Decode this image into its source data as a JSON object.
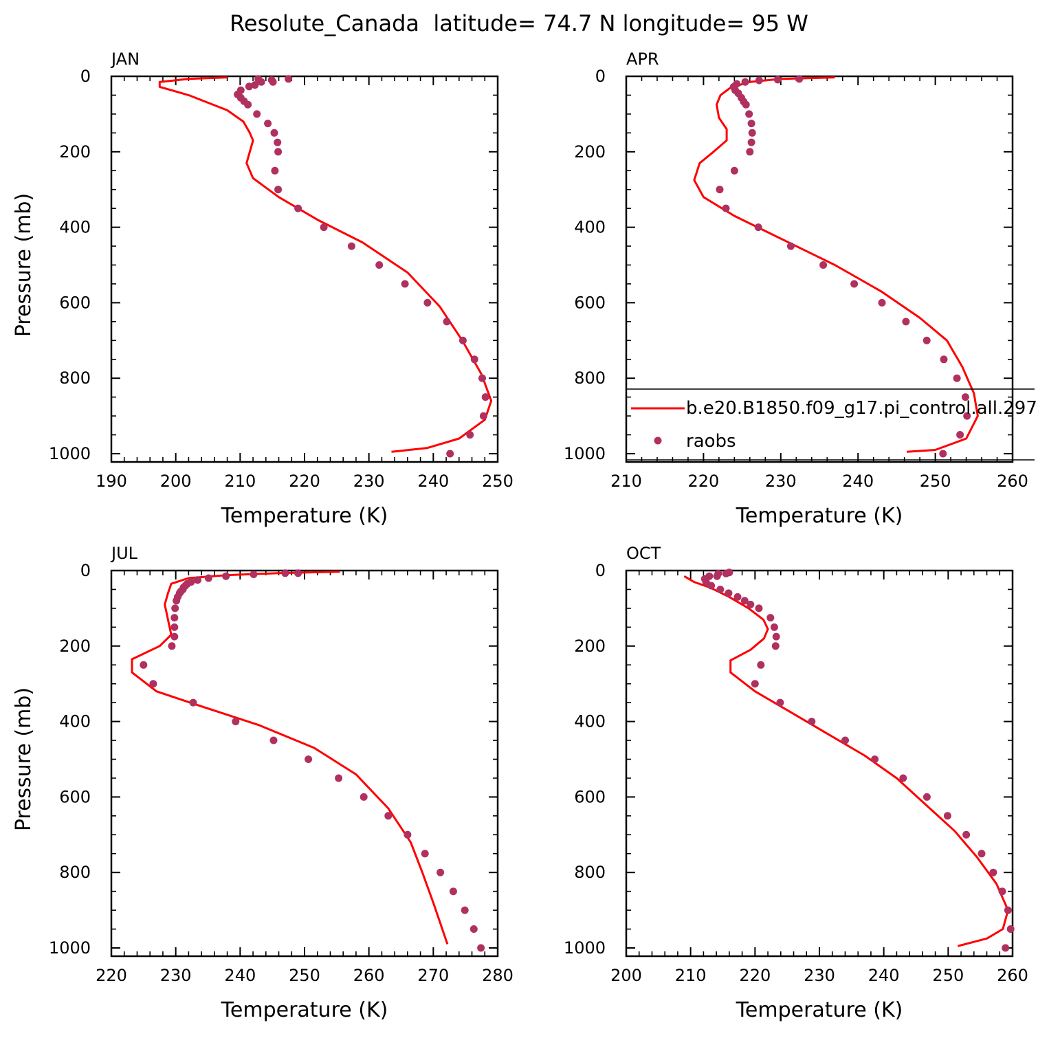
{
  "title": "Resolute_Canada  latitude= 74.7 N longitude= 95 W",
  "colors": {
    "model": "#ff0000",
    "obs": "#b03060",
    "axis": "#000000"
  },
  "legend": {
    "panel": 1,
    "model_label": "b.e20.B1850.f09_g17.pi_control.all.297",
    "obs_label": "raobs"
  },
  "chart_data": [
    {
      "type": "line",
      "panel_label": "JAN",
      "xlabel": "Temperature (K)",
      "ylabel": "Pressure (mb)",
      "xlim": [
        190,
        250
      ],
      "ylim": [
        1000,
        0
      ],
      "xticks": [
        190,
        200,
        210,
        220,
        230,
        240,
        250
      ],
      "yticks": [
        0,
        200,
        400,
        600,
        800,
        1000
      ],
      "series": [
        {
          "name": "b.e20.B1850.f09_g17.pi_control.all.297",
          "style": "line",
          "points": [
            [
              208,
              3
            ],
            [
              202,
              7
            ],
            [
              197.5,
              15
            ],
            [
              197.5,
              28
            ],
            [
              202,
              50
            ],
            [
              208,
              90
            ],
            [
              210.5,
              120
            ],
            [
              211.5,
              150
            ],
            [
              212,
              170
            ],
            [
              211.5,
              200
            ],
            [
              211,
              230
            ],
            [
              212,
              270
            ],
            [
              216,
              320
            ],
            [
              222,
              380
            ],
            [
              229,
              440
            ],
            [
              236,
              520
            ],
            [
              241,
              610
            ],
            [
              244.5,
              700
            ],
            [
              247.5,
              790
            ],
            [
              249,
              860
            ],
            [
              248,
              910
            ],
            [
              244,
              960
            ],
            [
              239,
              985
            ],
            [
              233.5,
              995
            ]
          ]
        },
        {
          "name": "raobs",
          "style": "scatter",
          "points": [
            [
              217.5,
              7
            ],
            [
              212.8,
              7
            ],
            [
              214.9,
              10
            ],
            [
              213.3,
              15
            ],
            [
              215.1,
              15
            ],
            [
              212.3,
              23
            ],
            [
              211.4,
              27
            ],
            [
              210.1,
              37
            ],
            [
              209.6,
              48
            ],
            [
              210.1,
              57
            ],
            [
              210.6,
              66
            ],
            [
              211.2,
              75
            ],
            [
              212.6,
              100
            ],
            [
              214.3,
              125
            ],
            [
              215.3,
              150
            ],
            [
              215.8,
              175
            ],
            [
              215.9,
              200
            ],
            [
              215.4,
              250
            ],
            [
              215.9,
              300
            ],
            [
              219,
              350
            ],
            [
              223,
              400
            ],
            [
              227.3,
              450
            ],
            [
              231.6,
              500
            ],
            [
              235.6,
              550
            ],
            [
              239.1,
              600
            ],
            [
              242.1,
              650
            ],
            [
              244.6,
              700
            ],
            [
              246.4,
              750
            ],
            [
              247.6,
              800
            ],
            [
              248.1,
              850
            ],
            [
              247.8,
              900
            ],
            [
              245.7,
              950
            ],
            [
              242.6,
              1000
            ]
          ]
        }
      ]
    },
    {
      "type": "line",
      "panel_label": "APR",
      "xlabel": "Temperature (K)",
      "ylabel": "",
      "xlim": [
        210,
        260
      ],
      "ylim": [
        1000,
        0
      ],
      "xticks": [
        210,
        220,
        230,
        240,
        250,
        260
      ],
      "yticks": [
        0,
        200,
        400,
        600,
        800,
        1000
      ],
      "series": [
        {
          "name": "b.e20.B1850.f09_g17.pi_control.all.297",
          "style": "line",
          "points": [
            [
              237,
              3
            ],
            [
              230,
              7
            ],
            [
              226,
              15
            ],
            [
              223.5,
              30
            ],
            [
              222.2,
              50
            ],
            [
              221.7,
              75
            ],
            [
              222,
              110
            ],
            [
              223,
              140
            ],
            [
              223,
              170
            ],
            [
              221.3,
              200
            ],
            [
              219.5,
              230
            ],
            [
              218.8,
              275
            ],
            [
              220,
              320
            ],
            [
              224,
              370
            ],
            [
              230,
              430
            ],
            [
              237,
              500
            ],
            [
              243,
              570
            ],
            [
              248,
              640
            ],
            [
              251.5,
              700
            ],
            [
              253.5,
              770
            ],
            [
              255,
              840
            ],
            [
              255.5,
              900
            ],
            [
              254,
              960
            ],
            [
              250,
              990
            ],
            [
              246.3,
              995
            ]
          ]
        },
        {
          "name": "raobs",
          "style": "scatter",
          "points": [
            [
              232.4,
              7
            ],
            [
              229.6,
              9
            ],
            [
              227.2,
              11
            ],
            [
              225.4,
              15
            ],
            [
              224.3,
              20
            ],
            [
              223.9,
              28
            ],
            [
              224.1,
              37
            ],
            [
              224.5,
              45
            ],
            [
              224.9,
              57
            ],
            [
              225.2,
              67
            ],
            [
              225.5,
              75
            ],
            [
              225.9,
              100
            ],
            [
              226.2,
              125
            ],
            [
              226.3,
              150
            ],
            [
              226.2,
              175
            ],
            [
              226,
              200
            ],
            [
              224,
              250
            ],
            [
              222.1,
              300
            ],
            [
              222.9,
              350
            ],
            [
              227.1,
              400
            ],
            [
              231.3,
              450
            ],
            [
              235.5,
              500
            ],
            [
              239.5,
              550
            ],
            [
              243.1,
              600
            ],
            [
              246.2,
              650
            ],
            [
              248.9,
              700
            ],
            [
              251.1,
              750
            ],
            [
              252.8,
              800
            ],
            [
              253.9,
              850
            ],
            [
              254.1,
              900
            ],
            [
              253.2,
              950
            ],
            [
              251,
              1000
            ]
          ]
        }
      ]
    },
    {
      "type": "line",
      "panel_label": "JUL",
      "xlabel": "Temperature (K)",
      "ylabel": "Pressure (mb)",
      "xlim": [
        220,
        280
      ],
      "ylim": [
        1000,
        0
      ],
      "xticks": [
        220,
        230,
        240,
        250,
        260,
        270,
        280
      ],
      "yticks": [
        0,
        200,
        400,
        600,
        800,
        1000
      ],
      "series": [
        {
          "name": "b.e20.B1850.f09_g17.pi_control.all.297",
          "style": "line",
          "points": [
            [
              255.5,
              3
            ],
            [
              246,
              7
            ],
            [
              238,
              12
            ],
            [
              232,
              20
            ],
            [
              229.3,
              35
            ],
            [
              228.8,
              60
            ],
            [
              228.3,
              90
            ],
            [
              228.8,
              130
            ],
            [
              229.3,
              170
            ],
            [
              227.5,
              200
            ],
            [
              223.2,
              235
            ],
            [
              223.2,
              270
            ],
            [
              227,
              320
            ],
            [
              234,
              360
            ],
            [
              243,
              410
            ],
            [
              251.5,
              470
            ],
            [
              258,
              540
            ],
            [
              263,
              630
            ],
            [
              266.5,
              720
            ],
            [
              268.3,
              800
            ],
            [
              270,
              880
            ],
            [
              271,
              930
            ],
            [
              272.2,
              990
            ]
          ]
        },
        {
          "name": "raobs",
          "style": "scatter",
          "points": [
            [
              249,
              7
            ],
            [
              247,
              7
            ],
            [
              242.1,
              10
            ],
            [
              237.8,
              15
            ],
            [
              235.1,
              20
            ],
            [
              233.4,
              25
            ],
            [
              232.4,
              30
            ],
            [
              231.8,
              35
            ],
            [
              231.5,
              40
            ],
            [
              231.2,
              45
            ],
            [
              231.1,
              50
            ],
            [
              230.8,
              55
            ],
            [
              230.6,
              60
            ],
            [
              230.3,
              70
            ],
            [
              230.1,
              80
            ],
            [
              229.9,
              100
            ],
            [
              229.8,
              125
            ],
            [
              229.8,
              150
            ],
            [
              229.8,
              175
            ],
            [
              229.4,
              200
            ],
            [
              225,
              250
            ],
            [
              226.5,
              300
            ],
            [
              232.7,
              350
            ],
            [
              239.3,
              400
            ],
            [
              245.2,
              450
            ],
            [
              250.6,
              500
            ],
            [
              255.3,
              550
            ],
            [
              259.2,
              600
            ],
            [
              263,
              650
            ],
            [
              266,
              700
            ],
            [
              268.7,
              750
            ],
            [
              271.1,
              800
            ],
            [
              273.1,
              850
            ],
            [
              274.9,
              900
            ],
            [
              276.3,
              950
            ],
            [
              277.4,
              1000
            ]
          ]
        }
      ]
    },
    {
      "type": "line",
      "panel_label": "OCT",
      "xlabel": "Temperature (K)",
      "ylabel": "",
      "xlim": [
        200,
        260
      ],
      "ylim": [
        1000,
        0
      ],
      "xticks": [
        200,
        210,
        220,
        230,
        240,
        250,
        260
      ],
      "yticks": [
        0,
        200,
        400,
        600,
        800,
        1000
      ],
      "series": [
        {
          "name": "b.e20.B1850.f09_g17.pi_control.all.297",
          "style": "line",
          "points": [
            [
              209,
              15
            ],
            [
              210.5,
              30
            ],
            [
              213,
              45
            ],
            [
              216,
              70
            ],
            [
              219,
              100
            ],
            [
              221.3,
              130
            ],
            [
              222,
              155
            ],
            [
              221.4,
              180
            ],
            [
              219.3,
              210
            ],
            [
              216.2,
              238
            ],
            [
              216.2,
              270
            ],
            [
              220,
              320
            ],
            [
              225,
              370
            ],
            [
              231,
              430
            ],
            [
              237,
              490
            ],
            [
              242,
              550
            ],
            [
              246.5,
              620
            ],
            [
              251,
              690
            ],
            [
              254.5,
              760
            ],
            [
              257.5,
              830
            ],
            [
              259.3,
              900
            ],
            [
              258.5,
              950
            ],
            [
              256,
              975
            ],
            [
              251.5,
              995
            ]
          ]
        },
        {
          "name": "raobs",
          "style": "scatter",
          "points": [
            [
              216,
              5
            ],
            [
              215.5,
              8
            ],
            [
              214.3,
              8
            ],
            [
              214.1,
              15
            ],
            [
              212.9,
              15
            ],
            [
              212.2,
              22
            ],
            [
              212.4,
              30
            ],
            [
              213.2,
              40
            ],
            [
              214.6,
              50
            ],
            [
              215.9,
              60
            ],
            [
              217.3,
              70
            ],
            [
              218.4,
              80
            ],
            [
              219.3,
              90
            ],
            [
              220.6,
              100
            ],
            [
              222.4,
              125
            ],
            [
              223,
              150
            ],
            [
              223.3,
              175
            ],
            [
              223.2,
              200
            ],
            [
              220.9,
              250
            ],
            [
              220,
              300
            ],
            [
              223.9,
              350
            ],
            [
              228.8,
              400
            ],
            [
              234,
              450
            ],
            [
              238.6,
              500
            ],
            [
              243,
              550
            ],
            [
              246.7,
              600
            ],
            [
              249.9,
              650
            ],
            [
              252.8,
              700
            ],
            [
              255.2,
              750
            ],
            [
              257,
              800
            ],
            [
              258.4,
              850
            ],
            [
              259.3,
              900
            ],
            [
              259.7,
              950
            ],
            [
              258.9,
              1000
            ]
          ]
        }
      ]
    }
  ]
}
